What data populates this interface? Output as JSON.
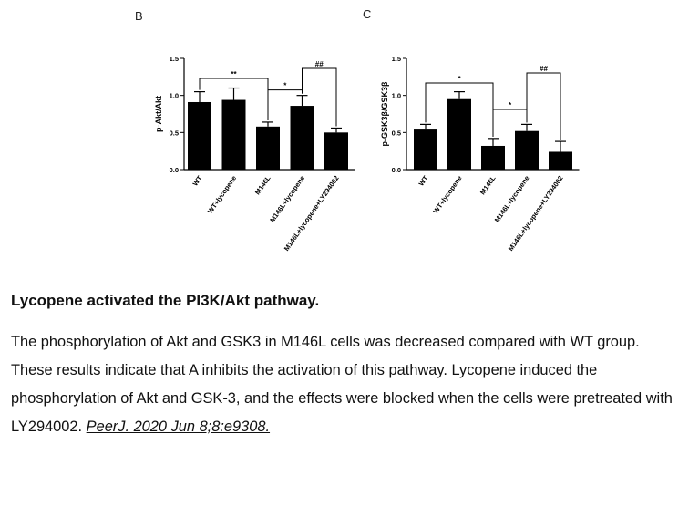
{
  "chart_data": [
    {
      "type": "bar",
      "panel_label": "B",
      "ylabel": "p-Akt/Akt",
      "ylim": [
        0,
        1.5
      ],
      "yticks": [
        "0.0",
        "0.5",
        "1.0",
        "1.5"
      ],
      "categories": [
        "WT",
        "WT+lycopene",
        "M146L",
        "M146L+lycopene",
        "M146L+lycopene+LY294002"
      ],
      "values": [
        0.91,
        0.94,
        0.58,
        0.86,
        0.5
      ],
      "errors": [
        0.14,
        0.16,
        0.06,
        0.14,
        0.06
      ],
      "significance": [
        {
          "from": 0,
          "to": 2,
          "label": "**"
        },
        {
          "from": 2,
          "to": 3,
          "label": "*"
        },
        {
          "from": 3,
          "to": 4,
          "label": "##"
        }
      ]
    },
    {
      "type": "bar",
      "panel_label": "C",
      "ylabel": "p-GSK3β/GSK3β",
      "ylim": [
        0,
        1.5
      ],
      "yticks": [
        "0.0",
        "0.5",
        "1.0",
        "1.5"
      ],
      "categories": [
        "WT",
        "WT+lycopene",
        "M146L",
        "M146L+lycopene",
        "M146L+lycopene+LY294002"
      ],
      "values": [
        0.54,
        0.95,
        0.32,
        0.52,
        0.24
      ],
      "errors": [
        0.07,
        0.1,
        0.1,
        0.09,
        0.14
      ],
      "significance": [
        {
          "from": 0,
          "to": 2,
          "label": "*"
        },
        {
          "from": 2,
          "to": 3,
          "label": "*"
        },
        {
          "from": 3,
          "to": 4,
          "label": "##"
        }
      ]
    }
  ],
  "caption": {
    "title": "Lycopene activated the PI3K/Akt pathway.",
    "body": "The phosphorylation of Akt and GSK3 in M146L cells was decreased compared with WT group. These results indicate that A inhibits the activation of this pathway. Lycopene induced the phosphorylation of Akt and GSK-3, and the effects were blocked when the cells were pretreated with LY294002. ",
    "citation": "PeerJ. 2020 Jun 8;8:e9308."
  }
}
